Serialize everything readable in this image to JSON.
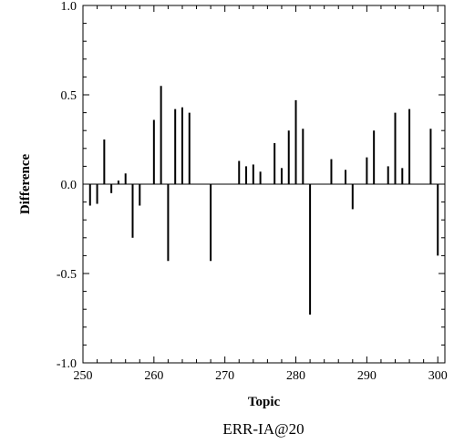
{
  "chart_data": {
    "type": "bar",
    "xlabel": "Topic",
    "ylabel": "Difference",
    "caption": "ERR-IA@20",
    "xlim": [
      250,
      301
    ],
    "ylim": [
      -1.0,
      1.0
    ],
    "xticks": [
      250,
      260,
      270,
      280,
      290,
      300
    ],
    "yticks": [
      1.0,
      0.5,
      0.0,
      -0.5,
      -1.0
    ],
    "ytick_labels": [
      "1.0",
      "0.5",
      "0.0",
      "-0.5",
      "-1.0"
    ],
    "grid": false,
    "x": [
      251,
      252,
      253,
      254,
      255,
      256,
      257,
      258,
      259,
      260,
      261,
      262,
      263,
      264,
      265,
      266,
      267,
      268,
      269,
      270,
      271,
      272,
      273,
      274,
      275,
      276,
      277,
      278,
      279,
      280,
      281,
      282,
      283,
      284,
      285,
      286,
      287,
      288,
      289,
      290,
      291,
      292,
      293,
      294,
      295,
      296,
      297,
      298,
      299,
      300
    ],
    "values": [
      -0.12,
      -0.11,
      0.25,
      -0.05,
      0.02,
      0.06,
      -0.3,
      -0.12,
      0.0,
      0.36,
      0.55,
      -0.43,
      0.42,
      0.43,
      0.4,
      0.0,
      0.0,
      -0.43,
      0.0,
      0.0,
      0.0,
      0.13,
      0.1,
      0.11,
      0.07,
      0.0,
      0.23,
      0.09,
      0.3,
      0.47,
      0.31,
      -0.73,
      0.0,
      0.0,
      0.14,
      0.0,
      0.08,
      -0.14,
      0.0,
      0.15,
      0.3,
      0.0,
      0.1,
      0.4,
      0.09,
      0.42,
      0.0,
      0.0,
      0.31,
      -0.4
    ]
  }
}
